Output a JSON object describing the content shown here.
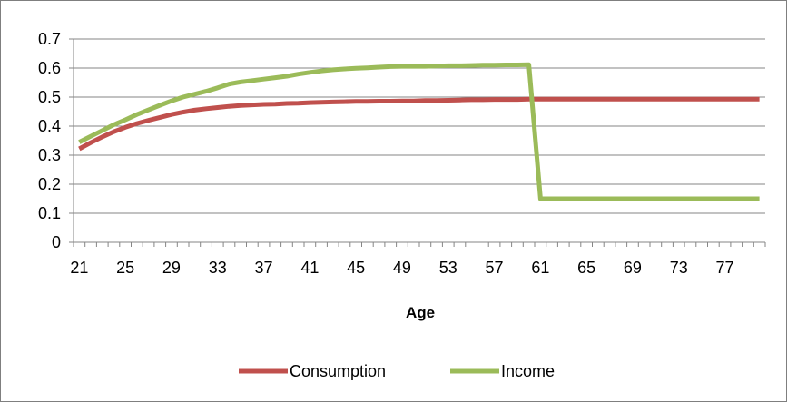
{
  "chart_data": {
    "type": "line",
    "title": "",
    "xlabel": "Age",
    "ylabel": "",
    "ylim": [
      0,
      0.7
    ],
    "yticks": [
      "0",
      "0.1",
      "0.2",
      "0.3",
      "0.4",
      "0.5",
      "0.6",
      "0.7"
    ],
    "xtick_labels": [
      "21",
      "25",
      "29",
      "33",
      "37",
      "41",
      "45",
      "49",
      "53",
      "57",
      "61",
      "65",
      "69",
      "73",
      "77"
    ],
    "grid": "horizontal",
    "legend_position": "bottom",
    "x": [
      21,
      22,
      23,
      24,
      25,
      26,
      27,
      28,
      29,
      30,
      31,
      32,
      33,
      34,
      35,
      36,
      37,
      38,
      39,
      40,
      41,
      42,
      43,
      44,
      45,
      46,
      47,
      48,
      49,
      50,
      51,
      52,
      53,
      54,
      55,
      56,
      57,
      58,
      59,
      60,
      61,
      62,
      63,
      64,
      65,
      66,
      67,
      68,
      69,
      70,
      71,
      72,
      73,
      74,
      75,
      76,
      77,
      78,
      79,
      80
    ],
    "series": [
      {
        "name": "Consumption",
        "color": "#c0504d",
        "values": [
          0.322,
          0.343,
          0.363,
          0.381,
          0.396,
          0.409,
          0.42,
          0.43,
          0.44,
          0.448,
          0.455,
          0.46,
          0.464,
          0.468,
          0.471,
          0.473,
          0.475,
          0.476,
          0.478,
          0.479,
          0.481,
          0.482,
          0.483,
          0.484,
          0.485,
          0.485,
          0.486,
          0.486,
          0.487,
          0.487,
          0.488,
          0.488,
          0.489,
          0.49,
          0.491,
          0.491,
          0.492,
          0.492,
          0.492,
          0.493,
          0.493,
          0.493,
          0.493,
          0.493,
          0.493,
          0.493,
          0.493,
          0.493,
          0.493,
          0.493,
          0.493,
          0.493,
          0.493,
          0.493,
          0.493,
          0.493,
          0.493,
          0.493,
          0.493,
          0.493
        ]
      },
      {
        "name": "Income",
        "color": "#9bbb59",
        "values": [
          0.345,
          0.365,
          0.385,
          0.405,
          0.422,
          0.44,
          0.456,
          0.472,
          0.487,
          0.5,
          0.51,
          0.52,
          0.532,
          0.545,
          0.552,
          0.557,
          0.562,
          0.567,
          0.572,
          0.579,
          0.585,
          0.59,
          0.594,
          0.597,
          0.599,
          0.601,
          0.603,
          0.605,
          0.606,
          0.606,
          0.606,
          0.607,
          0.608,
          0.608,
          0.609,
          0.61,
          0.61,
          0.611,
          0.611,
          0.612,
          0.15,
          0.15,
          0.15,
          0.15,
          0.15,
          0.15,
          0.15,
          0.15,
          0.15,
          0.15,
          0.15,
          0.15,
          0.15,
          0.15,
          0.15,
          0.15,
          0.15,
          0.15,
          0.15,
          0.15
        ]
      }
    ]
  }
}
